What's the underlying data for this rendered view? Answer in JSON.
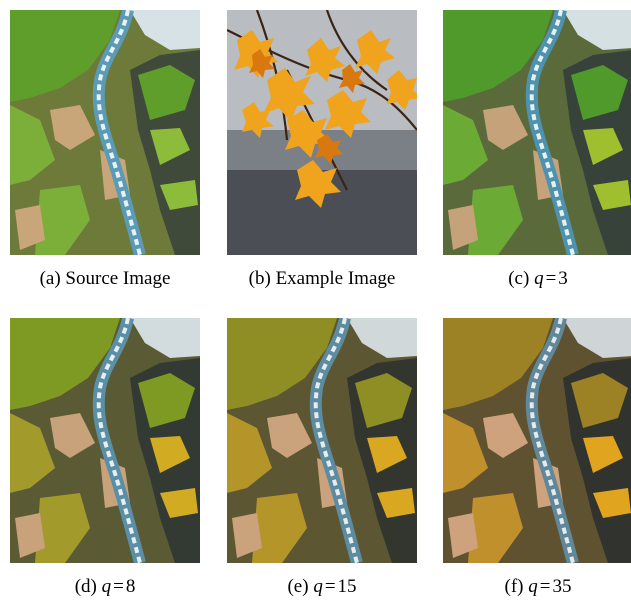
{
  "figure": {
    "panels": [
      {
        "id": "a",
        "label": "(a)",
        "caption": "Source Image"
      },
      {
        "id": "b",
        "label": "(b)",
        "caption": "Example Image"
      },
      {
        "id": "c",
        "label": "(c)",
        "var": "q",
        "rel": "=",
        "val": "3"
      },
      {
        "id": "d",
        "label": "(d)",
        "var": "q",
        "rel": "=",
        "val": "8"
      },
      {
        "id": "e",
        "label": "(e)",
        "var": "q",
        "rel": "=",
        "val": "15"
      },
      {
        "id": "f",
        "label": "(f)",
        "var": "q",
        "rel": "=",
        "val": "35"
      }
    ]
  }
}
